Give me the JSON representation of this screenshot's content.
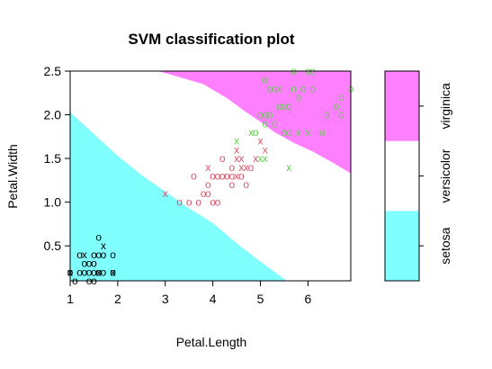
{
  "chart_data": {
    "type": "scatter",
    "title": "SVM classification plot",
    "xlabel": "Petal.Length",
    "ylabel": "Petal.Width",
    "xlim": [
      1,
      6.9
    ],
    "ylim": [
      0.1,
      2.5
    ],
    "xticks": [
      "1",
      "2",
      "3",
      "4",
      "5",
      "6"
    ],
    "yticks": [
      "0.5",
      "1.0",
      "1.5",
      "2.0",
      "2.5"
    ],
    "legend_position": "right",
    "legend_levels": [
      "setosa",
      "versicolor",
      "virginica"
    ],
    "region_colors": {
      "setosa": "#80FFFF",
      "versicolor": "#FFFFFF",
      "virginica": "#FF80FF"
    },
    "point_colors": {
      "setosa": "#000000",
      "versicolor": "#DF536B",
      "virginica": "#61D04F"
    },
    "marker_meaning": {
      "o": "data point",
      "x": "support vector"
    },
    "regions": [
      {
        "class": "setosa",
        "polygon": [
          [
            1.0,
            0.1
          ],
          [
            1.0,
            2.03
          ],
          [
            1.5,
            1.78
          ],
          [
            2.0,
            1.53
          ],
          [
            2.5,
            1.31
          ],
          [
            3.0,
            1.12
          ],
          [
            3.5,
            0.93
          ],
          [
            4.0,
            0.76
          ],
          [
            4.5,
            0.53
          ],
          [
            5.0,
            0.32
          ],
          [
            5.55,
            0.1
          ]
        ]
      },
      {
        "class": "virginica",
        "polygon": [
          [
            2.85,
            2.5
          ],
          [
            3.3,
            2.43
          ],
          [
            3.8,
            2.35
          ],
          [
            4.3,
            2.19
          ],
          [
            4.7,
            2.03
          ],
          [
            5.0,
            1.92
          ],
          [
            5.3,
            1.8
          ],
          [
            5.7,
            1.68
          ],
          [
            6.1,
            1.58
          ],
          [
            6.5,
            1.46
          ],
          [
            6.9,
            1.33
          ],
          [
            6.9,
            2.5
          ]
        ]
      }
    ],
    "series": [
      {
        "class": "setosa",
        "points": [
          {
            "x": 1.4,
            "y": 0.2,
            "marker": "o"
          },
          {
            "x": 1.3,
            "y": 0.2,
            "marker": "o"
          },
          {
            "x": 1.5,
            "y": 0.2,
            "marker": "o"
          },
          {
            "x": 1.7,
            "y": 0.4,
            "marker": "o"
          },
          {
            "x": 1.4,
            "y": 0.3,
            "marker": "o"
          },
          {
            "x": 1.5,
            "y": 0.1,
            "marker": "o"
          },
          {
            "x": 1.6,
            "y": 0.2,
            "marker": "o"
          },
          {
            "x": 1.1,
            "y": 0.1,
            "marker": "o"
          },
          {
            "x": 1.2,
            "y": 0.2,
            "marker": "o"
          },
          {
            "x": 1.0,
            "y": 0.2,
            "marker": "o"
          },
          {
            "x": 1.7,
            "y": 0.2,
            "marker": "o"
          },
          {
            "x": 1.9,
            "y": 0.2,
            "marker": "o"
          },
          {
            "x": 1.6,
            "y": 0.6,
            "marker": "o"
          },
          {
            "x": 1.5,
            "y": 0.4,
            "marker": "o"
          },
          {
            "x": 1.3,
            "y": 0.3,
            "marker": "o"
          },
          {
            "x": 1.6,
            "y": 0.4,
            "marker": "o"
          },
          {
            "x": 1.9,
            "y": 0.4,
            "marker": "o"
          },
          {
            "x": 1.5,
            "y": 0.3,
            "marker": "o"
          },
          {
            "x": 1.4,
            "y": 0.1,
            "marker": "o"
          },
          {
            "x": 1.2,
            "y": 0.4,
            "marker": "o"
          },
          {
            "x": 1.7,
            "y": 0.5,
            "marker": "x"
          },
          {
            "x": 1.9,
            "y": 0.2,
            "marker": "x"
          },
          {
            "x": 1.3,
            "y": 0.4,
            "marker": "x"
          },
          {
            "x": 1.0,
            "y": 0.2,
            "marker": "x"
          },
          {
            "x": 1.6,
            "y": 0.2,
            "marker": "x"
          }
        ]
      },
      {
        "class": "versicolor",
        "points": [
          {
            "x": 3.0,
            "y": 1.1,
            "marker": "x"
          },
          {
            "x": 3.3,
            "y": 1.0,
            "marker": "o"
          },
          {
            "x": 3.5,
            "y": 1.0,
            "marker": "o"
          },
          {
            "x": 3.6,
            "y": 1.3,
            "marker": "o"
          },
          {
            "x": 3.7,
            "y": 1.0,
            "marker": "o"
          },
          {
            "x": 3.8,
            "y": 1.1,
            "marker": "o"
          },
          {
            "x": 3.9,
            "y": 1.1,
            "marker": "o"
          },
          {
            "x": 3.9,
            "y": 1.2,
            "marker": "o"
          },
          {
            "x": 3.9,
            "y": 1.4,
            "marker": "x"
          },
          {
            "x": 4.0,
            "y": 1.0,
            "marker": "o"
          },
          {
            "x": 4.0,
            "y": 1.3,
            "marker": "o"
          },
          {
            "x": 4.1,
            "y": 1.0,
            "marker": "o"
          },
          {
            "x": 4.1,
            "y": 1.3,
            "marker": "o"
          },
          {
            "x": 4.2,
            "y": 1.3,
            "marker": "o"
          },
          {
            "x": 4.2,
            "y": 1.5,
            "marker": "o"
          },
          {
            "x": 4.3,
            "y": 1.3,
            "marker": "o"
          },
          {
            "x": 4.4,
            "y": 1.2,
            "marker": "o"
          },
          {
            "x": 4.4,
            "y": 1.3,
            "marker": "o"
          },
          {
            "x": 4.4,
            "y": 1.4,
            "marker": "o"
          },
          {
            "x": 4.5,
            "y": 1.3,
            "marker": "x"
          },
          {
            "x": 4.5,
            "y": 1.5,
            "marker": "x"
          },
          {
            "x": 4.5,
            "y": 1.6,
            "marker": "x"
          },
          {
            "x": 4.6,
            "y": 1.3,
            "marker": "o"
          },
          {
            "x": 4.6,
            "y": 1.4,
            "marker": "x"
          },
          {
            "x": 4.6,
            "y": 1.5,
            "marker": "x"
          },
          {
            "x": 4.7,
            "y": 1.2,
            "marker": "o"
          },
          {
            "x": 4.7,
            "y": 1.4,
            "marker": "x"
          },
          {
            "x": 4.8,
            "y": 1.4,
            "marker": "o"
          },
          {
            "x": 4.9,
            "y": 1.5,
            "marker": "x"
          },
          {
            "x": 5.0,
            "y": 1.7,
            "marker": "x"
          },
          {
            "x": 5.1,
            "y": 1.6,
            "marker": "x"
          }
        ]
      },
      {
        "class": "virginica",
        "points": [
          {
            "x": 4.5,
            "y": 1.7,
            "marker": "x"
          },
          {
            "x": 4.8,
            "y": 1.8,
            "marker": "x"
          },
          {
            "x": 4.9,
            "y": 1.8,
            "marker": "o"
          },
          {
            "x": 5.0,
            "y": 1.5,
            "marker": "x"
          },
          {
            "x": 5.0,
            "y": 2.0,
            "marker": "o"
          },
          {
            "x": 5.1,
            "y": 1.5,
            "marker": "x"
          },
          {
            "x": 5.1,
            "y": 1.9,
            "marker": "o"
          },
          {
            "x": 5.1,
            "y": 2.0,
            "marker": "o"
          },
          {
            "x": 5.1,
            "y": 2.4,
            "marker": "o"
          },
          {
            "x": 5.2,
            "y": 2.0,
            "marker": "o"
          },
          {
            "x": 5.2,
            "y": 2.3,
            "marker": "o"
          },
          {
            "x": 5.3,
            "y": 1.9,
            "marker": "o"
          },
          {
            "x": 5.3,
            "y": 2.3,
            "marker": "o"
          },
          {
            "x": 5.4,
            "y": 2.1,
            "marker": "o"
          },
          {
            "x": 5.4,
            "y": 2.3,
            "marker": "x"
          },
          {
            "x": 5.5,
            "y": 1.8,
            "marker": "o"
          },
          {
            "x": 5.5,
            "y": 2.1,
            "marker": "o"
          },
          {
            "x": 5.6,
            "y": 1.4,
            "marker": "x"
          },
          {
            "x": 5.6,
            "y": 1.8,
            "marker": "o"
          },
          {
            "x": 5.6,
            "y": 2.1,
            "marker": "o"
          },
          {
            "x": 5.7,
            "y": 2.3,
            "marker": "o"
          },
          {
            "x": 5.7,
            "y": 2.5,
            "marker": "o"
          },
          {
            "x": 5.8,
            "y": 1.8,
            "marker": "x"
          },
          {
            "x": 5.8,
            "y": 2.2,
            "marker": "o"
          },
          {
            "x": 5.9,
            "y": 2.3,
            "marker": "o"
          },
          {
            "x": 6.0,
            "y": 1.8,
            "marker": "x"
          },
          {
            "x": 6.0,
            "y": 2.5,
            "marker": "o"
          },
          {
            "x": 6.1,
            "y": 2.3,
            "marker": "o"
          },
          {
            "x": 6.1,
            "y": 2.5,
            "marker": "o"
          },
          {
            "x": 6.3,
            "y": 1.8,
            "marker": "o"
          },
          {
            "x": 6.4,
            "y": 2.0,
            "marker": "o"
          },
          {
            "x": 6.6,
            "y": 2.1,
            "marker": "o"
          },
          {
            "x": 6.7,
            "y": 2.0,
            "marker": "o"
          },
          {
            "x": 6.7,
            "y": 2.2,
            "marker": "o"
          },
          {
            "x": 6.9,
            "y": 2.3,
            "marker": "o"
          }
        ]
      }
    ]
  }
}
